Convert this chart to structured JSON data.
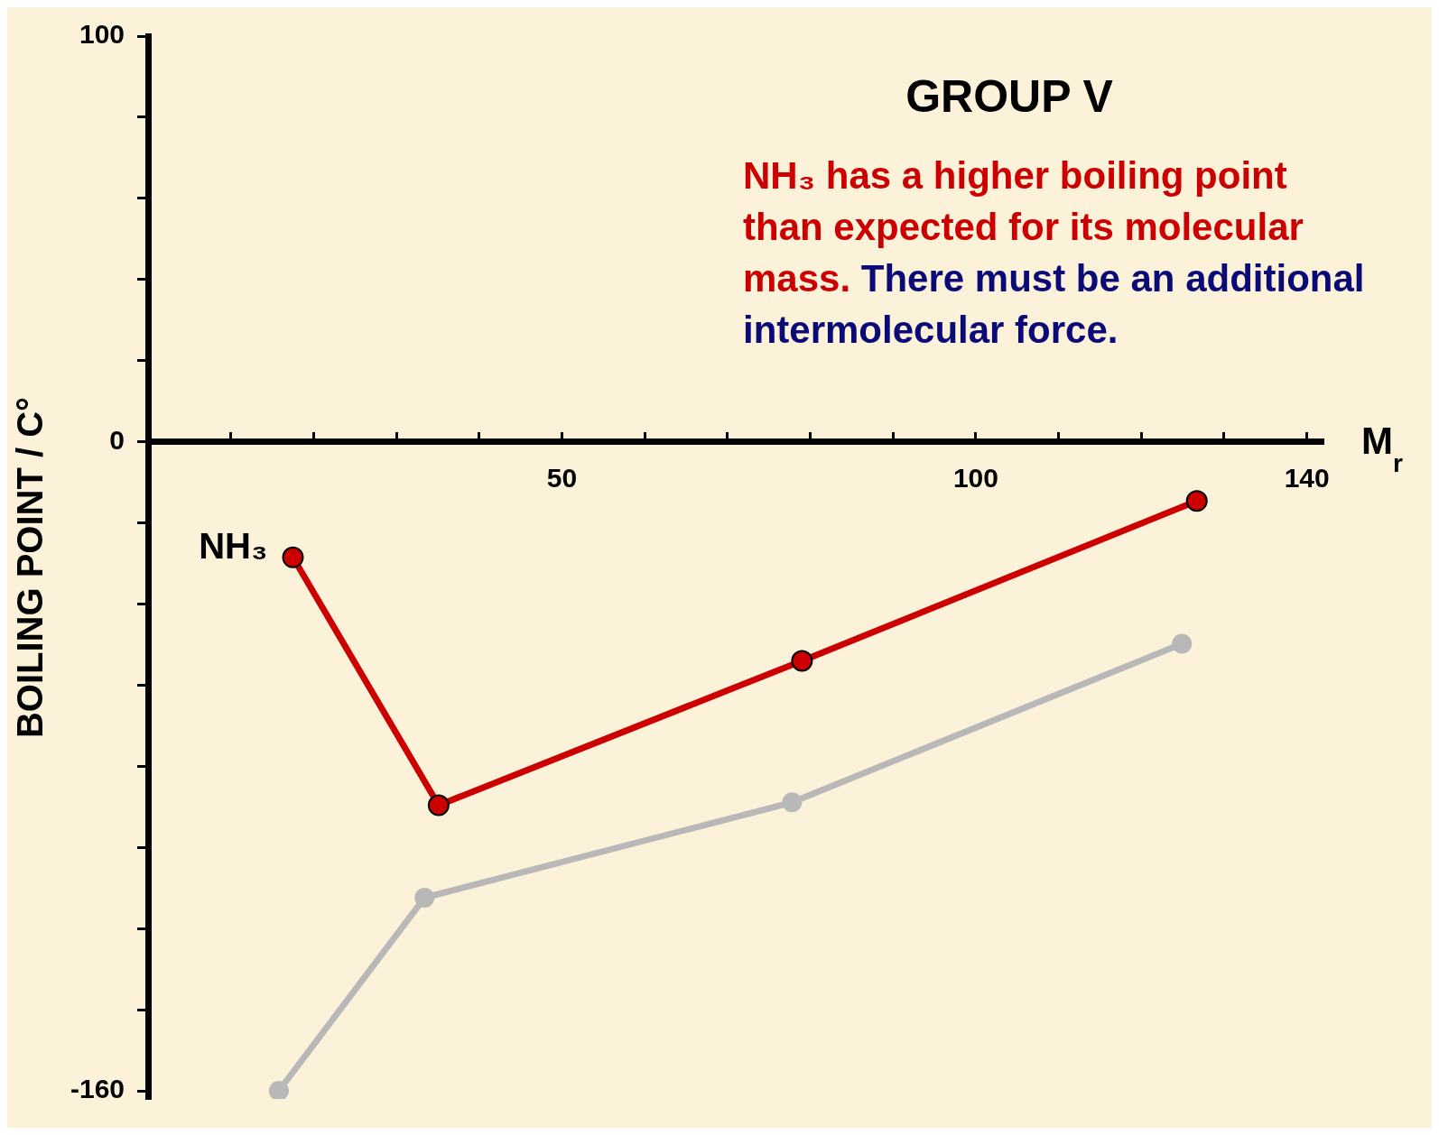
{
  "chart_data": {
    "type": "line",
    "title": "GROUP V",
    "xlabel": "M$_{r}$",
    "ylabel": "BOILING POINT / C°",
    "annotations": [
      "NH₃ has a higher boiling point than expected for its molecular mass.",
      "There must be an additional intermolecular force.",
      {
        "text": "NH₃",
        "x": 17.5,
        "y": -28.5
      }
    ],
    "series": [
      {
        "color": "#cc0000",
        "x": [
          17.5,
          35.1,
          79,
          126.7
        ],
        "values": [
          -28.5,
          -89.6,
          -54,
          -14.6
        ]
      },
      {
        "color": "#b8b8b8",
        "x": [
          15.8,
          33.4,
          77.8,
          124.9
        ],
        "values": [
          -160,
          -112.4,
          -88.9,
          -49.8
        ]
      }
    ],
    "xlim": [
      0,
      142
    ],
    "xticks": [
      {
        "value": 10,
        "label": null
      },
      {
        "value": 20,
        "label": null
      },
      {
        "value": 30,
        "label": null
      },
      {
        "value": 40,
        "label": null
      },
      50,
      {
        "value": 60,
        "label": null
      },
      {
        "value": 70,
        "label": null
      },
      {
        "value": 80,
        "label": null
      },
      {
        "value": 90,
        "label": null
      },
      100,
      {
        "value": 110,
        "label": null
      },
      {
        "value": 120,
        "label": null
      },
      {
        "value": 130,
        "label": null
      },
      140
    ],
    "ylim": [
      -162,
      100
    ],
    "yticks": [
      -160,
      {
        "value": -140,
        "label": null
      },
      {
        "value": -120,
        "label": null
      },
      {
        "value": -100,
        "label": null
      },
      {
        "value": -80,
        "label": null
      },
      {
        "value": -60,
        "label": null
      },
      {
        "value": -40,
        "label": null
      },
      {
        "value": -20,
        "label": null
      },
      0,
      {
        "value": 20,
        "label": null
      },
      {
        "value": 40,
        "label": null
      },
      {
        "value": 60,
        "label": null
      },
      {
        "value": 80,
        "label": null
      },
      100
    ],
    "grid": false,
    "legend": false,
    "marker": "circle",
    "line_style": "solid"
  }
}
